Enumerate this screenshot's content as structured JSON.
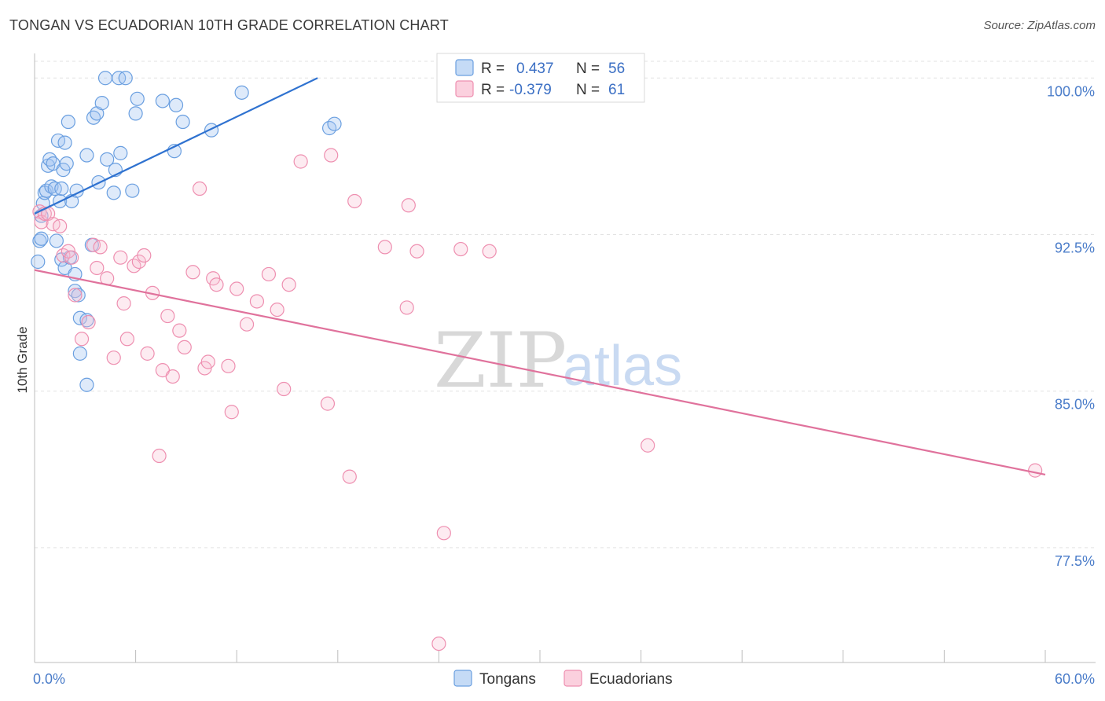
{
  "title": "TONGAN VS ECUADORIAN 10TH GRADE CORRELATION CHART",
  "source": "Source: ZipAtlas.com",
  "watermark": {
    "zip": "ZIP",
    "atlas": "atlas"
  },
  "colors": {
    "tongan": "#6a9fe0",
    "tongan_line": "#2f72d0",
    "ecuadorian": "#ee8fb0",
    "ecuadorian_line": "#e0729c",
    "grid": "#e2e2e2",
    "tick_label": "#4a7cc9"
  },
  "legend_top": {
    "rows": [
      {
        "r_label": "R =",
        "r_value": "0.437",
        "n_label": "N =",
        "n_value": "56"
      },
      {
        "r_label": "R =",
        "r_value": "-0.379",
        "n_label": "N =",
        "n_value": "61"
      }
    ]
  },
  "legend_bottom": {
    "items": [
      "Tongans",
      "Ecuadorians"
    ]
  },
  "chart_data": {
    "type": "scatter",
    "title": "TONGAN VS ECUADORIAN 10TH GRADE CORRELATION CHART",
    "xlabel": "",
    "ylabel": "10th Grade",
    "xlim": [
      0,
      60
    ],
    "ylim": [
      72,
      100.8
    ],
    "x_tick_labels": [
      {
        "value": 0,
        "label": "0.0%"
      },
      {
        "value": 60,
        "label": "60.0%"
      }
    ],
    "y_ticks": [
      {
        "value": 100.0,
        "label": "100.0%"
      },
      {
        "value": 92.5,
        "label": "92.5%"
      },
      {
        "value": 85.0,
        "label": "85.0%"
      },
      {
        "value": 77.5,
        "label": "77.5%"
      }
    ],
    "grid": "horizontal dashed",
    "legend": "top-center",
    "series": [
      {
        "name": "Tongans",
        "trend": {
          "x": [
            0,
            16.8
          ],
          "y": [
            93.5,
            100.0
          ]
        },
        "points": [
          [
            0.2,
            91.2
          ],
          [
            0.3,
            92.2
          ],
          [
            0.4,
            92.3
          ],
          [
            0.5,
            94.0
          ],
          [
            0.6,
            94.5
          ],
          [
            0.7,
            94.6
          ],
          [
            0.8,
            95.8
          ],
          [
            0.9,
            96.1
          ],
          [
            1.0,
            94.8
          ],
          [
            1.1,
            95.9
          ],
          [
            1.2,
            94.7
          ],
          [
            1.3,
            92.2
          ],
          [
            1.4,
            97.0
          ],
          [
            1.5,
            94.1
          ],
          [
            1.6,
            94.7
          ],
          [
            1.7,
            95.6
          ],
          [
            1.8,
            96.9
          ],
          [
            1.9,
            95.9
          ],
          [
            2.0,
            97.9
          ],
          [
            2.2,
            94.1
          ],
          [
            2.5,
            94.6
          ],
          [
            1.6,
            91.3
          ],
          [
            1.8,
            90.9
          ],
          [
            2.1,
            91.4
          ],
          [
            2.4,
            90.6
          ],
          [
            2.4,
            89.8
          ],
          [
            2.6,
            89.6
          ],
          [
            2.7,
            88.5
          ],
          [
            2.7,
            86.8
          ],
          [
            3.1,
            88.4
          ],
          [
            3.1,
            85.3
          ],
          [
            3.1,
            96.3
          ],
          [
            3.5,
            98.1
          ],
          [
            3.7,
            98.3
          ],
          [
            3.8,
            95.0
          ],
          [
            4.0,
            98.8
          ],
          [
            4.2,
            100.0
          ],
          [
            4.3,
            96.1
          ],
          [
            4.7,
            94.5
          ],
          [
            4.8,
            95.6
          ],
          [
            5.0,
            100.0
          ],
          [
            5.1,
            96.4
          ],
          [
            5.4,
            100.0
          ],
          [
            5.8,
            94.6
          ],
          [
            6.0,
            98.3
          ],
          [
            6.1,
            99.0
          ],
          [
            7.6,
            98.9
          ],
          [
            8.3,
            96.5
          ],
          [
            8.4,
            98.7
          ],
          [
            8.8,
            97.9
          ],
          [
            10.5,
            97.5
          ],
          [
            12.3,
            99.3
          ],
          [
            17.5,
            97.6
          ],
          [
            17.8,
            97.8
          ],
          [
            0.4,
            93.4
          ],
          [
            3.4,
            92.0
          ]
        ]
      },
      {
        "name": "Ecuadorians",
        "trend": {
          "x": [
            0,
            60
          ],
          "y": [
            90.8,
            81.0
          ]
        },
        "points": [
          [
            0.3,
            93.6
          ],
          [
            0.4,
            93.1
          ],
          [
            0.6,
            93.5
          ],
          [
            0.8,
            93.5
          ],
          [
            1.1,
            93.0
          ],
          [
            1.5,
            92.9
          ],
          [
            1.7,
            91.5
          ],
          [
            2.0,
            91.7
          ],
          [
            2.2,
            91.4
          ],
          [
            2.4,
            89.6
          ],
          [
            2.8,
            87.5
          ],
          [
            3.2,
            88.3
          ],
          [
            3.5,
            92.0
          ],
          [
            3.7,
            90.9
          ],
          [
            3.9,
            91.9
          ],
          [
            4.3,
            90.4
          ],
          [
            4.7,
            86.6
          ],
          [
            5.1,
            91.4
          ],
          [
            5.3,
            89.2
          ],
          [
            5.5,
            87.5
          ],
          [
            5.9,
            91.0
          ],
          [
            6.2,
            91.2
          ],
          [
            6.5,
            91.5
          ],
          [
            6.7,
            86.8
          ],
          [
            7.0,
            89.7
          ],
          [
            7.4,
            81.9
          ],
          [
            7.6,
            86.0
          ],
          [
            7.9,
            88.6
          ],
          [
            8.2,
            85.7
          ],
          [
            8.6,
            87.9
          ],
          [
            8.9,
            87.1
          ],
          [
            9.4,
            90.7
          ],
          [
            9.8,
            94.7
          ],
          [
            10.1,
            86.1
          ],
          [
            10.3,
            86.4
          ],
          [
            10.6,
            90.4
          ],
          [
            10.8,
            90.1
          ],
          [
            11.5,
            86.2
          ],
          [
            11.7,
            84.0
          ],
          [
            12.0,
            89.9
          ],
          [
            12.6,
            88.2
          ],
          [
            13.2,
            89.3
          ],
          [
            13.9,
            90.6
          ],
          [
            14.4,
            88.9
          ],
          [
            14.8,
            85.1
          ],
          [
            15.1,
            90.1
          ],
          [
            15.8,
            96.0
          ],
          [
            17.4,
            84.4
          ],
          [
            17.6,
            96.3
          ],
          [
            18.7,
            80.9
          ],
          [
            19.0,
            94.1
          ],
          [
            20.8,
            91.9
          ],
          [
            22.1,
            89.0
          ],
          [
            22.2,
            93.9
          ],
          [
            22.7,
            91.7
          ],
          [
            24.0,
            72.9
          ],
          [
            24.3,
            78.2
          ],
          [
            25.3,
            91.8
          ],
          [
            27.0,
            91.7
          ],
          [
            36.4,
            82.4
          ],
          [
            59.4,
            81.2
          ]
        ]
      }
    ]
  }
}
